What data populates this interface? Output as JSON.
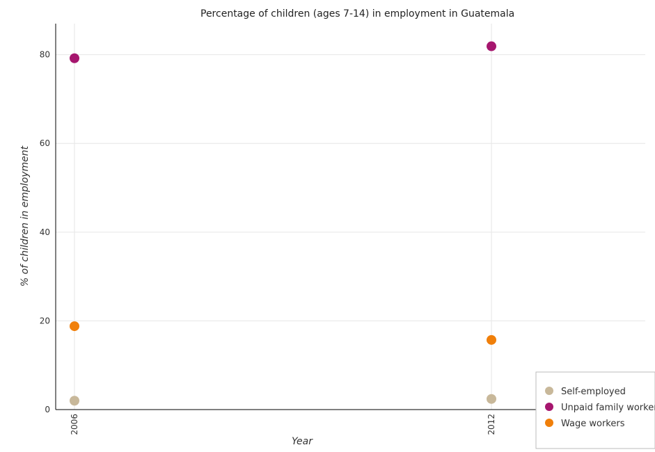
{
  "chart_data": {
    "type": "scatter",
    "title": "Percentage of children (ages 7-14) in employment in Guatemala",
    "xlabel": "Year",
    "ylabel": "% of children in employment",
    "categories": [
      "2006",
      "2012"
    ],
    "ylim": [
      0,
      87
    ],
    "yticks": [
      "0",
      "20",
      "40",
      "60",
      "80"
    ],
    "grid": true,
    "legend_position": "bottom-right",
    "series": [
      {
        "name": "Self-employed",
        "color": "#c8b89a",
        "values": [
          2.0,
          2.4
        ]
      },
      {
        "name": "Unpaid family workers",
        "color": "#a6166e",
        "values": [
          79.2,
          81.9
        ]
      },
      {
        "name": "Wage workers",
        "color": "#f07f0a",
        "values": [
          18.8,
          15.7
        ]
      }
    ]
  }
}
